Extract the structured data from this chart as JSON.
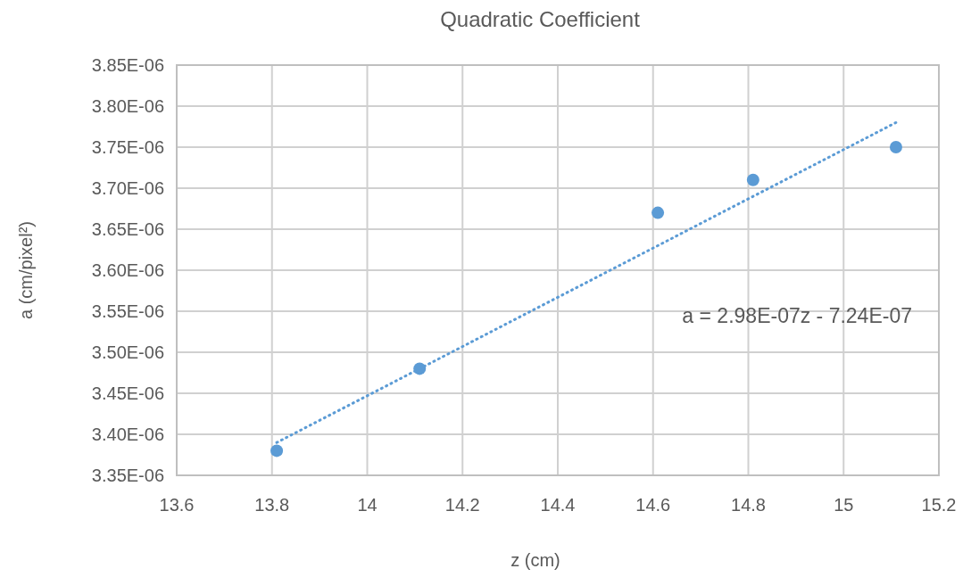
{
  "chart_data": {
    "type": "scatter",
    "title": "Quadratic Coefficient",
    "xlabel": "z (cm)",
    "ylabel": "a (cm/pixel²)",
    "xlim": [
      13.6,
      15.2
    ],
    "xticks": [
      13.6,
      13.8,
      14,
      14.2,
      14.4,
      14.6,
      14.8,
      15,
      15.2
    ],
    "ylim": [
      3.35e-06,
      3.85e-06
    ],
    "yticks": [
      {
        "value": 3.35e-06,
        "label": "3.35E-06"
      },
      {
        "value": 3.4e-06,
        "label": "3.40E-06"
      },
      {
        "value": 3.45e-06,
        "label": "3.45E-06"
      },
      {
        "value": 3.5e-06,
        "label": "3.50E-06"
      },
      {
        "value": 3.55e-06,
        "label": "3.55E-06"
      },
      {
        "value": 3.6e-06,
        "label": "3.60E-06"
      },
      {
        "value": 3.65e-06,
        "label": "3.65E-06"
      },
      {
        "value": 3.7e-06,
        "label": "3.70E-06"
      },
      {
        "value": 3.75e-06,
        "label": "3.75E-06"
      },
      {
        "value": 3.8e-06,
        "label": "3.80E-06"
      },
      {
        "value": 3.85e-06,
        "label": "3.85E-06"
      }
    ],
    "grid": true,
    "series": [
      {
        "color": "#5b9bd5",
        "marker": "circle",
        "x": [
          13.81,
          14.11,
          14.61,
          14.81,
          15.11
        ],
        "values": [
          3.38e-06,
          3.48e-06,
          3.67e-06,
          3.71e-06,
          3.75e-06
        ]
      },
      {
        "type": "line",
        "color": "#5b9bd5",
        "line_style": "dotted",
        "x": [
          13.81,
          15.11
        ],
        "values": [
          3.39e-06,
          3.78e-06
        ]
      }
    ],
    "annotations": [
      "a = 2.98E-07z - 7.24E-07"
    ]
  }
}
